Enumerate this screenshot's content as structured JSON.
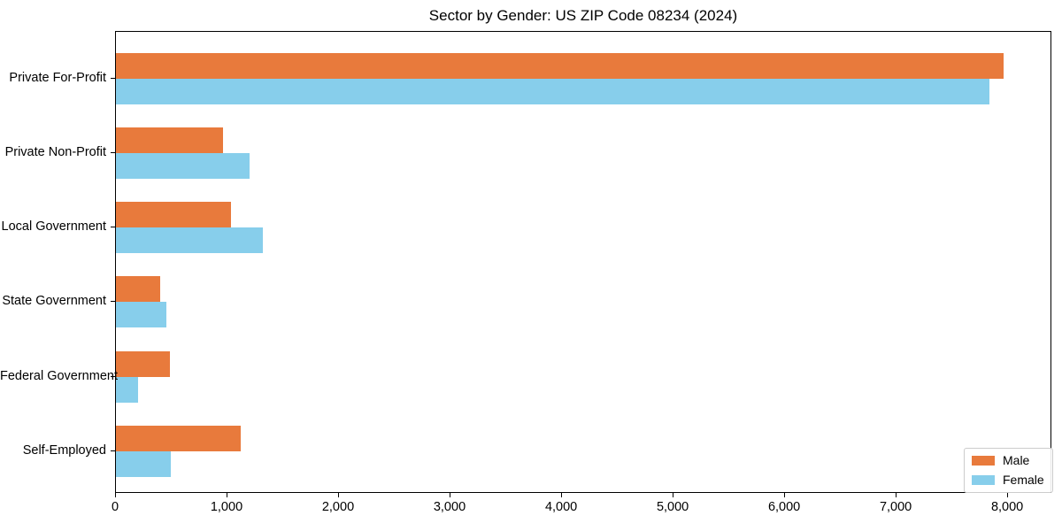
{
  "chart_data": {
    "type": "bar",
    "orientation": "horizontal",
    "title": "Sector by Gender: US ZIP Code 08234 (2024)",
    "xlabel": "",
    "ylabel": "",
    "categories": [
      "Private For-Profit",
      "Private Non-Profit",
      "Local Government",
      "State Government",
      "Federal Government",
      "Self-Employed"
    ],
    "series": [
      {
        "name": "Male",
        "color": "#E87A3C",
        "values": [
          7960,
          960,
          1030,
          400,
          480,
          1120
        ]
      },
      {
        "name": "Female",
        "color": "#87CEEB",
        "values": [
          7830,
          1200,
          1320,
          450,
          200,
          490
        ]
      }
    ],
    "xlim": [
      0,
      8380
    ],
    "xticks": [
      0,
      1000,
      2000,
      3000,
      4000,
      5000,
      6000,
      7000,
      8000
    ],
    "xtick_labels": [
      "0",
      "1,000",
      "2,000",
      "3,000",
      "4,000",
      "5,000",
      "6,000",
      "7,000",
      "8,000"
    ],
    "grid": false,
    "legend_position": "lower right",
    "plot_background": "#ffffff",
    "spine_color": "#000000"
  }
}
